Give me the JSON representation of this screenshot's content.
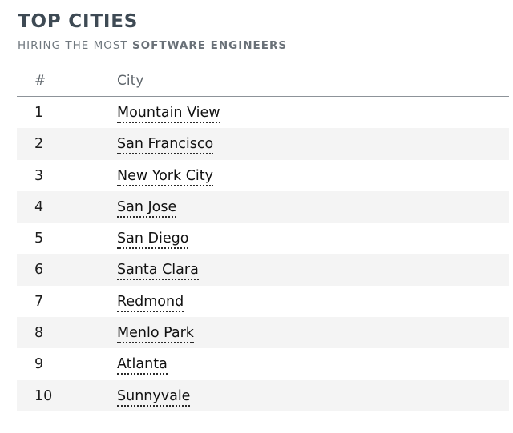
{
  "title": "TOP CITIES",
  "subtitle": {
    "prefix": "HIRING THE MOST ",
    "emphasis": "SOFTWARE ENGINEERS"
  },
  "table": {
    "headers": {
      "rank": "#",
      "city": "City"
    },
    "rows": [
      {
        "rank": "1",
        "city": "Mountain View"
      },
      {
        "rank": "2",
        "city": "San Francisco"
      },
      {
        "rank": "3",
        "city": "New York City"
      },
      {
        "rank": "4",
        "city": "San Jose"
      },
      {
        "rank": "5",
        "city": "San Diego"
      },
      {
        "rank": "6",
        "city": "Santa Clara"
      },
      {
        "rank": "7",
        "city": "Redmond"
      },
      {
        "rank": "8",
        "city": "Menlo Park"
      },
      {
        "rank": "9",
        "city": "Atlanta"
      },
      {
        "rank": "10",
        "city": "Sunnyvale"
      }
    ]
  },
  "colors": {
    "title": "#3e4a54",
    "subtitle": "#6f777e",
    "row_stripe": "#f4f4f4",
    "header_rule": "#8d9399"
  }
}
